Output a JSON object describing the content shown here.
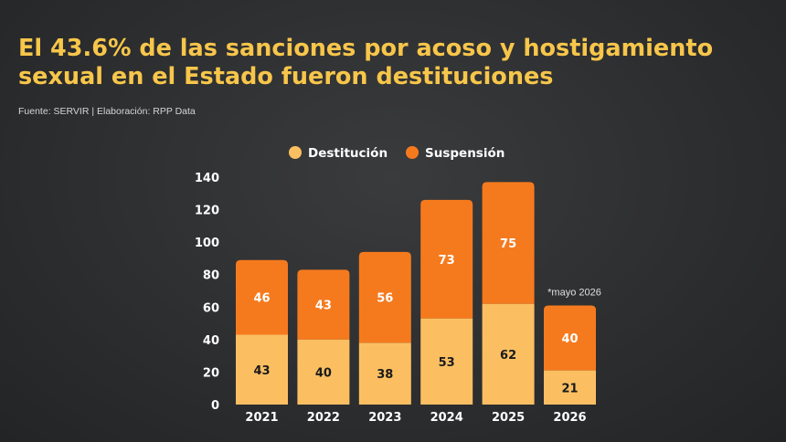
{
  "title_lines": [
    "El 43.6% de las sanciones por acoso y hostigamiento",
    "sexual en el Estado fueron destituciones"
  ],
  "source": "Fuente: SERVIR | Elaboración: RPP Data",
  "colors": {
    "destitucion": "#fbbf62",
    "suspension": "#f57a1e",
    "title": "#f7c64a",
    "axis_text": "#ffffff",
    "background": "#2e2f31"
  },
  "chart_data": {
    "type": "bar",
    "stacked": true,
    "categories": [
      "2021",
      "2022",
      "2023",
      "2024",
      "2025",
      "2026"
    ],
    "series": [
      {
        "name": "Destitución",
        "values": [
          43,
          40,
          38,
          53,
          62,
          21
        ]
      },
      {
        "name": "Suspensión",
        "values": [
          46,
          43,
          56,
          73,
          75,
          40
        ]
      }
    ],
    "ylim": [
      0,
      140
    ],
    "yticks": [
      0,
      20,
      40,
      60,
      80,
      100,
      120,
      140
    ],
    "legend_position": "top",
    "grid": false,
    "annotations": [
      {
        "category": "2026",
        "text": "*mayo 2026"
      }
    ]
  }
}
